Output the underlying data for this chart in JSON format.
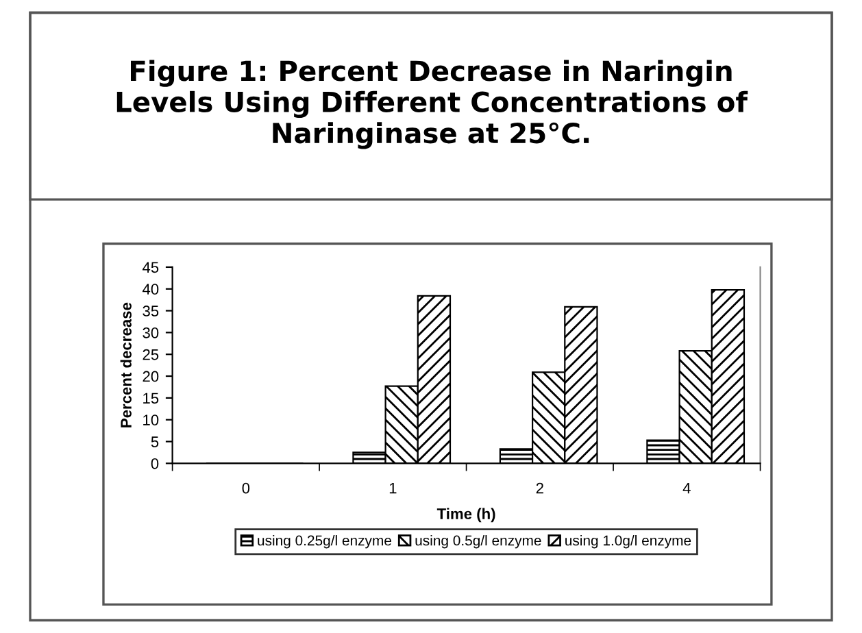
{
  "chart_data": {
    "type": "bar",
    "title": "Figure 1: Percent Decrease in Naringin Levels Using Different Concentrations of Naringinase at 25°C.",
    "categories": [
      "0",
      "1",
      "2",
      "4"
    ],
    "series": [
      {
        "name": "using 0.25g/l enzyme",
        "color": "#000000",
        "values": [
          0,
          2.5,
          3.3,
          5.3
        ]
      },
      {
        "name": "using 0.5g/l enzyme",
        "color": "#000000",
        "values": [
          0,
          17.7,
          20.9,
          25.8
        ]
      },
      {
        "name": "using 1.0g/l enzyme",
        "color": "#000000",
        "values": [
          0,
          38.4,
          35.9,
          39.8
        ]
      }
    ],
    "xlabel": "Time (h)",
    "ylabel": "Percent decrease",
    "ylim": [
      0,
      45
    ],
    "yticks": [
      0,
      5,
      10,
      15,
      20,
      25,
      30,
      35,
      40,
      45
    ],
    "grid": false,
    "legend": "bottom"
  }
}
